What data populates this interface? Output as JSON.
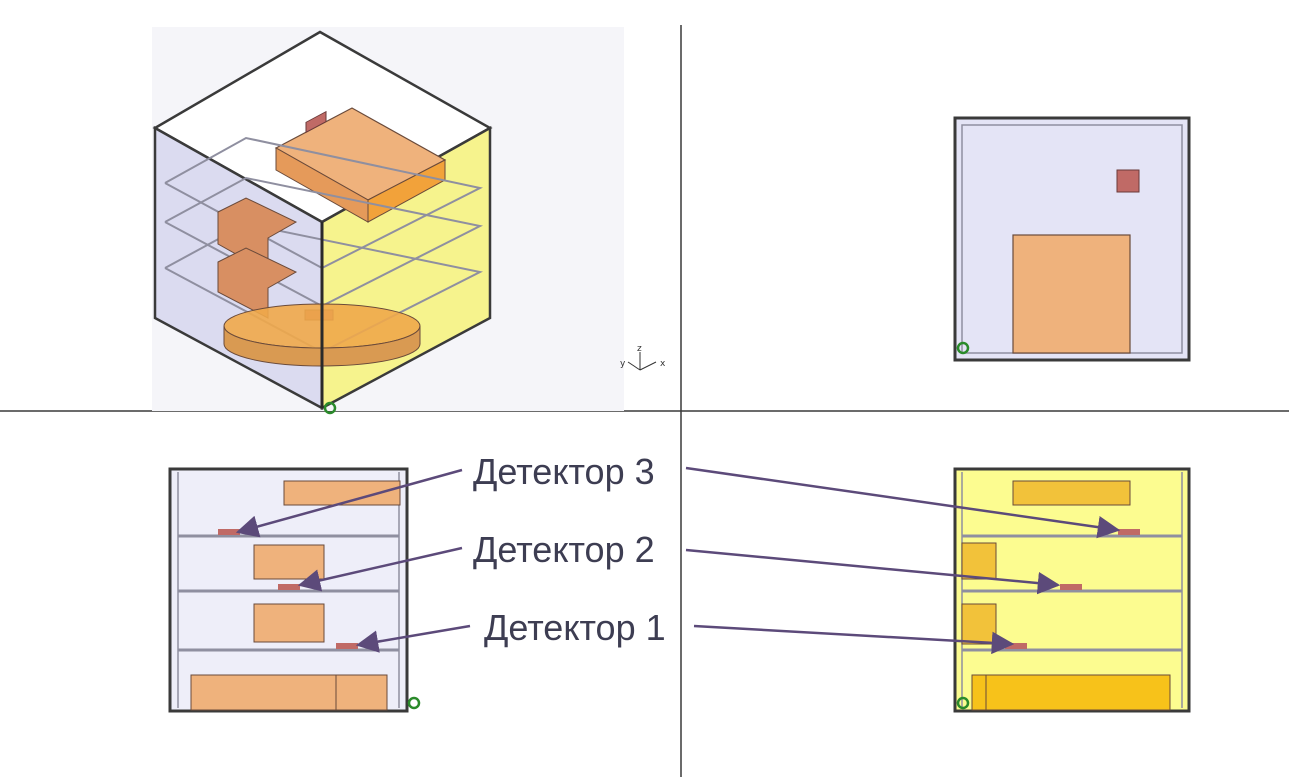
{
  "labels": {
    "detector3": "Детектор 3",
    "detector2": "Детектор 2",
    "detector1": "Детектор 1"
  },
  "axis_triad": {
    "x": "x",
    "y": "y",
    "z": "z"
  },
  "colors": {
    "box_side": "#dcdcf2",
    "yellow_face": "#f6f27a",
    "component": "#efb27c",
    "component_dark": "#d9a06a",
    "detector": "#c06a66",
    "shelf": "#8f8fa0",
    "frame": "#3a3a3a",
    "arrow": "#5c4a7a",
    "divider": "#3a3a3a"
  },
  "icons": [
    "origin-marker-icon",
    "axis-triad-icon"
  ]
}
